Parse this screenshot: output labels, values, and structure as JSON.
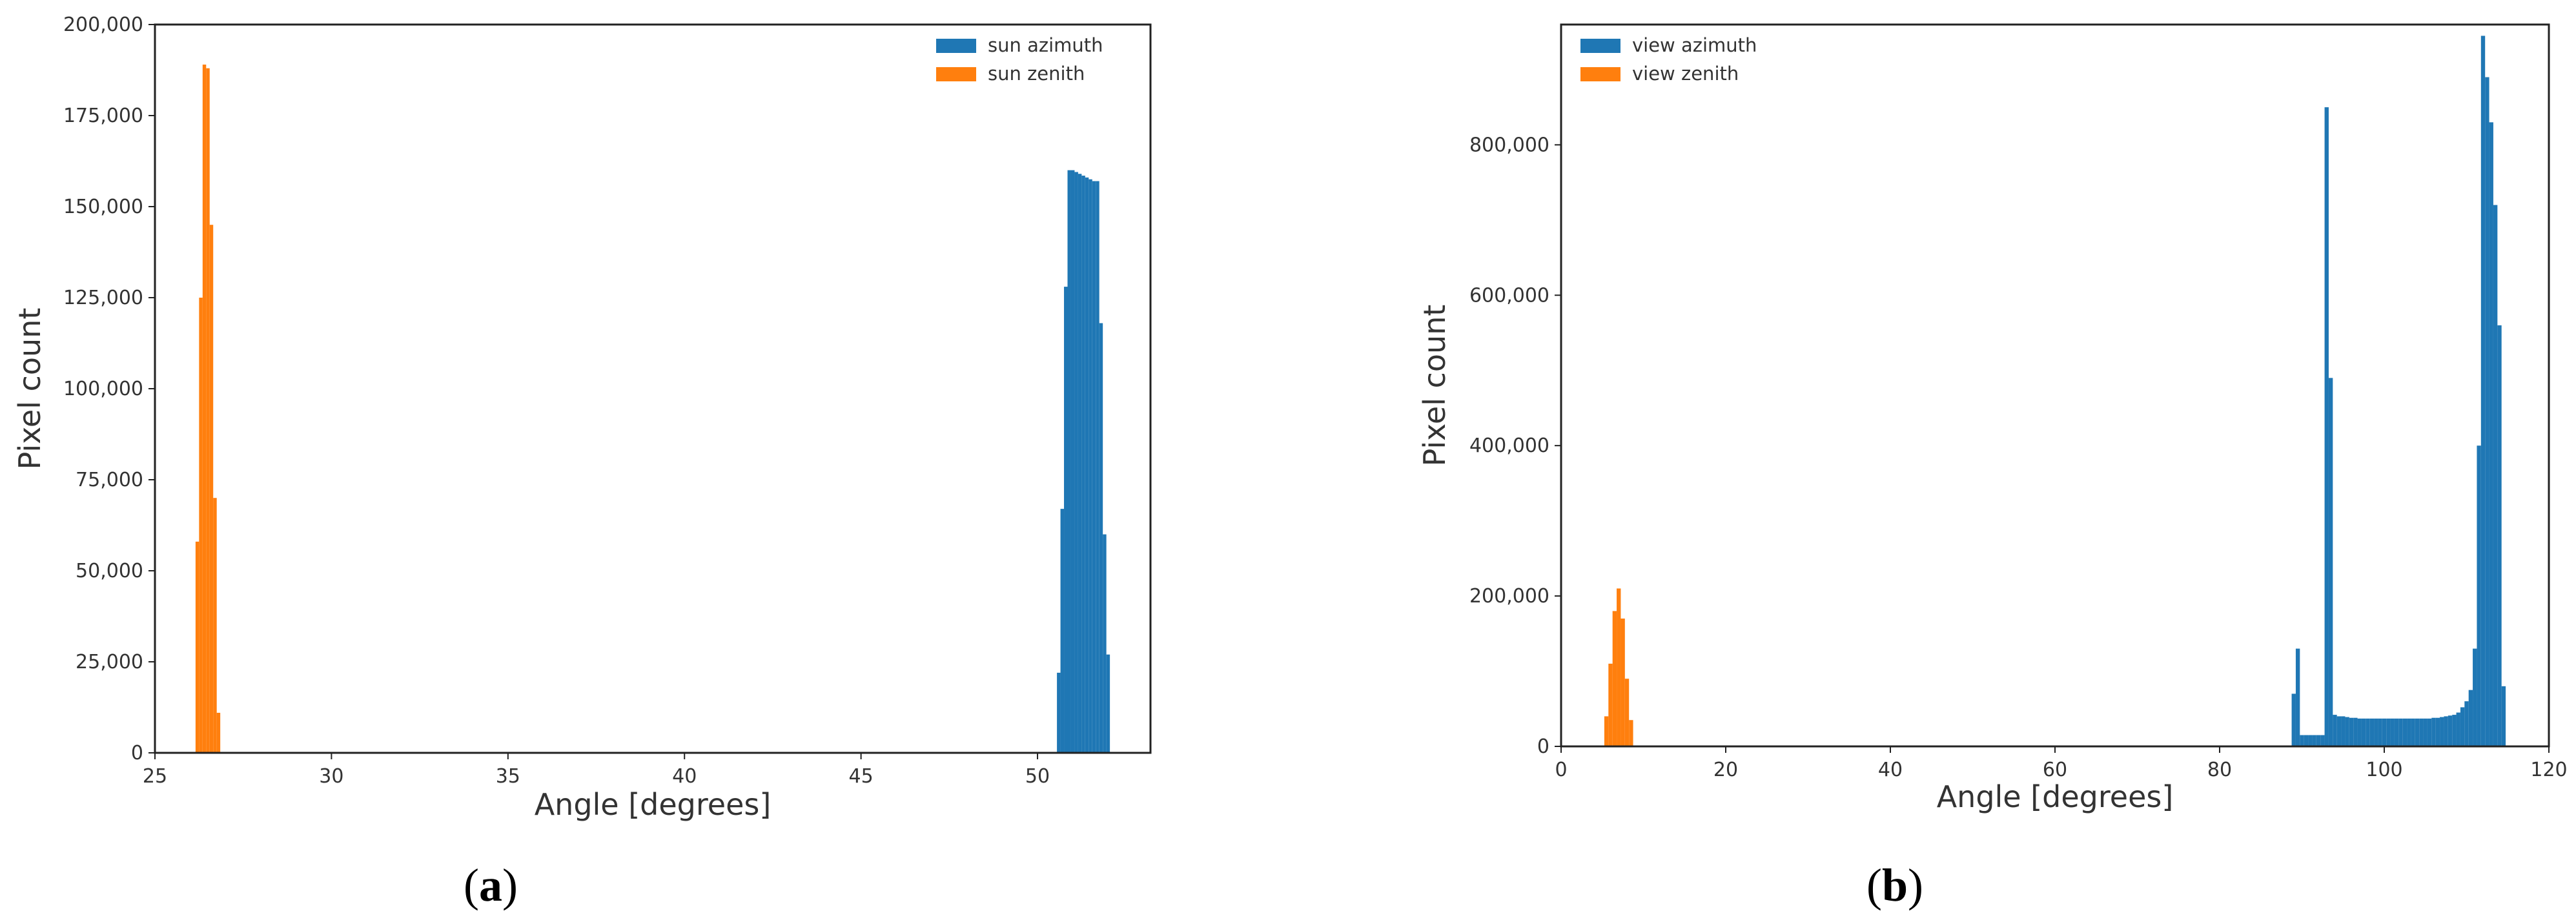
{
  "chart_data": [
    {
      "type": "bar",
      "caption": "(a)",
      "caption_letter": "a",
      "xlabel": "Angle [degrees]",
      "ylabel": "Pixel count",
      "xlim": [
        25,
        53.2
      ],
      "ylim": [
        0,
        200000
      ],
      "x_ticks": [
        25,
        30,
        35,
        40,
        45,
        50
      ],
      "y_ticks": [
        0,
        25000,
        50000,
        75000,
        100000,
        125000,
        150000,
        175000,
        200000
      ],
      "x_tick_labels": [
        "25",
        "30",
        "35",
        "40",
        "45",
        "50"
      ],
      "y_tick_labels": [
        "0",
        "25,000",
        "50,000",
        "75,000",
        "100,000",
        "125,000",
        "150,000",
        "175,000",
        "200,000"
      ],
      "grid": false,
      "legend_position": "top-right",
      "bar_width": 0.1,
      "series": [
        {
          "name": "sun azimuth",
          "color": "#1f77b4",
          "x": [
            50.6,
            50.7,
            50.8,
            50.9,
            51.0,
            51.1,
            51.2,
            51.3,
            51.4,
            51.5,
            51.6,
            51.7,
            51.8,
            51.9,
            52.0
          ],
          "values": [
            22000,
            67000,
            128000,
            160000,
            160000,
            159500,
            159000,
            158500,
            158000,
            157500,
            157000,
            157000,
            118000,
            60000,
            27000
          ]
        },
        {
          "name": "sun zenith",
          "color": "#ff7f0e",
          "x": [
            26.2,
            26.3,
            26.4,
            26.5,
            26.6,
            26.7,
            26.8
          ],
          "values": [
            58000,
            125000,
            189000,
            188000,
            145000,
            70000,
            11000
          ]
        }
      ]
    },
    {
      "type": "bar",
      "caption": "(b)",
      "caption_letter": "b",
      "xlabel": "Angle [degrees]",
      "ylabel": "Pixel count",
      "xlim": [
        0,
        120
      ],
      "ylim": [
        0,
        960000
      ],
      "x_ticks": [
        0,
        20,
        40,
        60,
        80,
        100,
        120
      ],
      "y_ticks": [
        0,
        200000,
        400000,
        600000,
        800000
      ],
      "x_tick_labels": [
        "0",
        "20",
        "40",
        "60",
        "80",
        "100",
        "120"
      ],
      "y_tick_labels": [
        "0",
        "200,000",
        "400,000",
        "600,000",
        "800,000"
      ],
      "grid": false,
      "legend_position": "top-left",
      "bar_width": 0.5,
      "series": [
        {
          "name": "view azimuth",
          "color": "#1f77b4",
          "x": [
            89.0,
            89.5,
            90.0,
            90.5,
            91.0,
            91.5,
            92.0,
            92.5,
            93.0,
            93.5,
            94.0,
            94.5,
            95.0,
            95.5,
            96.0,
            96.5,
            97.0,
            97.5,
            98.0,
            98.5,
            99.0,
            99.5,
            100.0,
            100.5,
            101.0,
            101.5,
            102.0,
            102.5,
            103.0,
            103.5,
            104.0,
            104.5,
            105.0,
            105.5,
            106.0,
            106.5,
            107.0,
            107.5,
            108.0,
            108.5,
            109.0,
            109.5,
            110.0,
            110.5,
            111.0,
            111.5,
            112.0,
            112.5,
            113.0,
            113.5,
            114.0,
            114.5
          ],
          "values": [
            70000,
            130000,
            15000,
            15000,
            15000,
            15000,
            15000,
            15000,
            850000,
            490000,
            42000,
            40000,
            40000,
            39000,
            38000,
            38000,
            37000,
            37000,
            37000,
            37000,
            37000,
            37000,
            37000,
            37000,
            37000,
            37000,
            37000,
            37000,
            37000,
            37000,
            37000,
            37000,
            37000,
            37000,
            38000,
            38000,
            39000,
            40000,
            41000,
            42000,
            45000,
            52000,
            60000,
            75000,
            130000,
            400000,
            945000,
            890000,
            830000,
            720000,
            560000,
            80000
          ]
        },
        {
          "name": "view zenith",
          "color": "#ff7f0e",
          "x": [
            5.5,
            6.0,
            6.5,
            7.0,
            7.5,
            8.0,
            8.5
          ],
          "values": [
            40000,
            110000,
            180000,
            210000,
            170000,
            90000,
            35000
          ]
        }
      ]
    }
  ]
}
